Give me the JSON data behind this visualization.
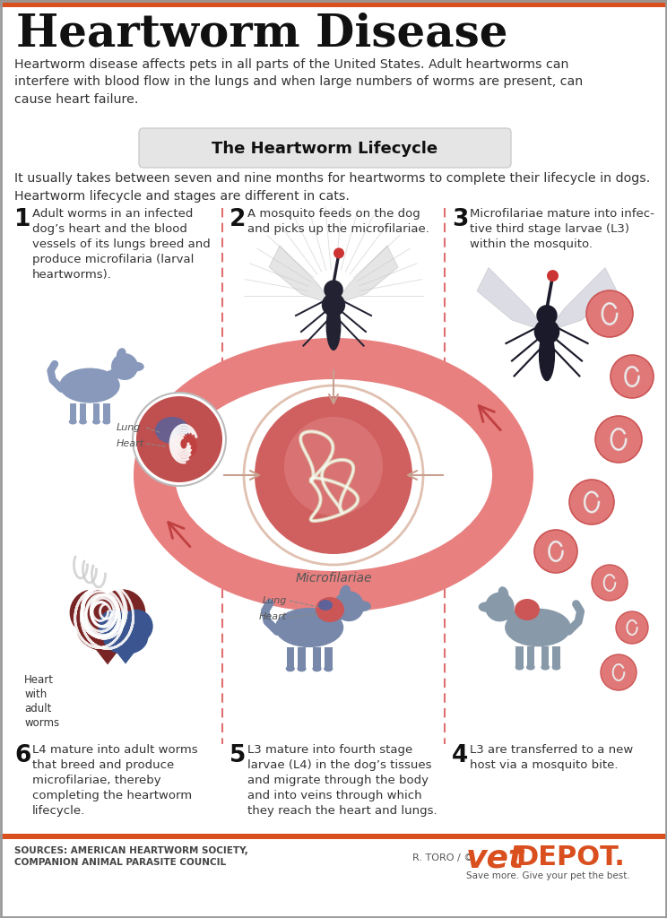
{
  "title": "Heartworm Disease",
  "header_bar_color": "#d94f1e",
  "bg_color": "#ffffff",
  "intro_text": "Heartworm disease affects pets in all parts of the United States. Adult heartworms can\ninterfere with blood flow in the lungs and when large numbers of worms are present, can\ncause heart failure.",
  "lifecycle_title": "The Heartworm Lifecycle",
  "lifecycle_sub": "It usually takes between seven and nine months for heartworms to complete their lifecycle in dogs.\nHeartworm lifecycle and stages are different in cats.",
  "steps": [
    {
      "num": "1",
      "text": "Adult worms in an infected\ndog’s heart and the blood\nvessels of its lungs breed and\nproduce microfilaria (larval\nheartworms)."
    },
    {
      "num": "2",
      "text": "A mosquito feeds on the dog\nand picks up the microfilariae."
    },
    {
      "num": "3",
      "text": "Microfilariae mature into infec-\ntive third stage larvae (L3)\nwithin the mosquito."
    },
    {
      "num": "4",
      "text": "L3 are transferred to a new\nhost via a mosquito bite."
    },
    {
      "num": "5",
      "text": "L3 mature into fourth stage\nlarvae (L4) in the dog’s tissues\nand migrate through the body\nand into veins through which\nthey reach the heart and lungs."
    },
    {
      "num": "6",
      "text": "L4 mature into adult worms\nthat breed and produce\nmicrofilariae, thereby\ncompleting the heartworm\nlifecycle."
    }
  ],
  "center_label": "Microfilariae",
  "footer_source": "SOURCES: AMERICAN HEARTWORM SOCIETY,\nCOMPANION ANIMAL PARASITE COUNCIL",
  "footer_credit": "R. TORO / ©",
  "footer_tagline": "Save more. Give your pet the best.",
  "pink": "#e07070",
  "dark_pink": "#c04040",
  "light_pink": "#f0a0a0",
  "salmon": "#e88080",
  "gray_animal": "#8899aa",
  "gray_animal2": "#99aaaa",
  "dark_gray": "#2d3a4a",
  "heart_red": "#8b2020",
  "heart_blue": "#4466aa"
}
